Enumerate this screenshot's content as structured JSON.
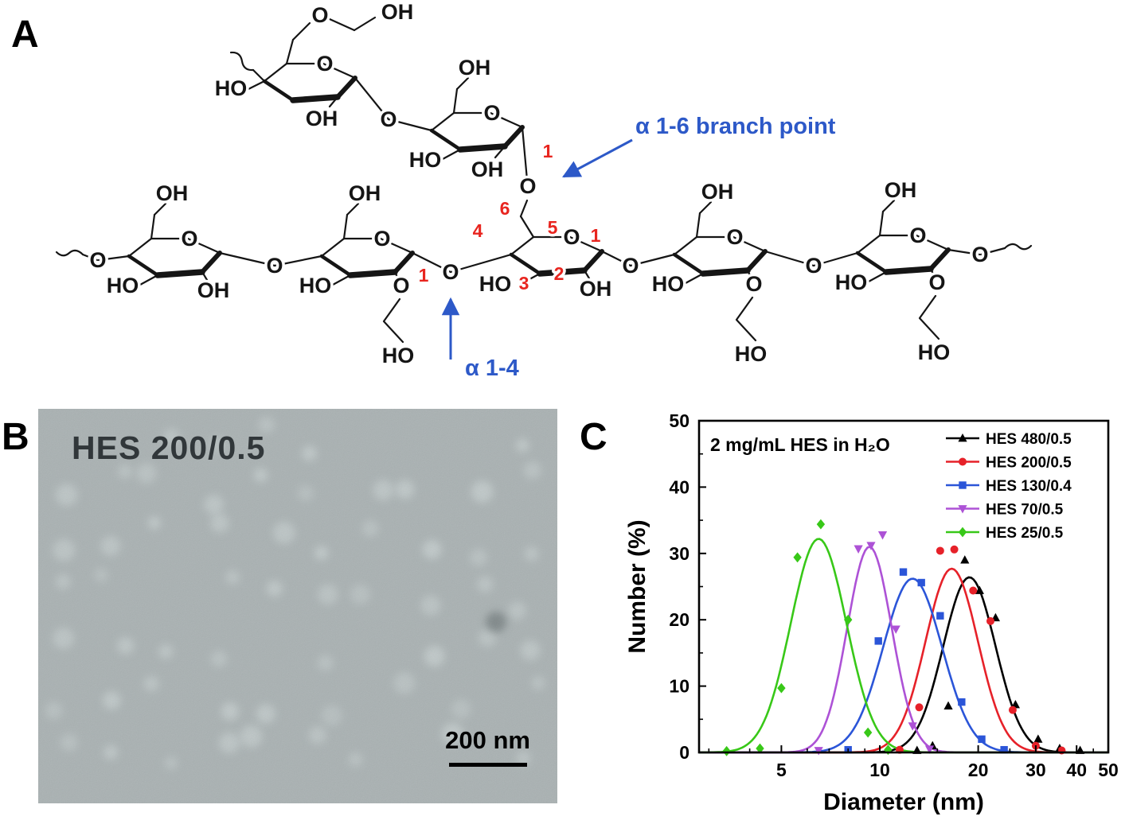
{
  "figure": {
    "panel_a_label": "A",
    "panel_b_label": "B",
    "panel_c_label": "C"
  },
  "chem": {
    "o": "O",
    "oh": "OH",
    "ho": "HO",
    "numbers": {
      "n1": "1",
      "n2": "2",
      "n3": "3",
      "n4": "4",
      "n5": "5",
      "n6": "6"
    },
    "branch_annotation": "α  1-6 branch point",
    "linkage_annotation": "α  1-4",
    "annotation_color": "#2d59c8",
    "number_color": "#e8251f",
    "bond_color": "#151515"
  },
  "tem": {
    "title": "HES 200/0.5",
    "scalebar_label": "200 nm"
  },
  "chart_data": {
    "type": "line",
    "annotation": "2 mg/mL HES in H₂O",
    "xlabel": "Diameter (nm)",
    "ylabel": "Number (%)",
    "xscale": "log",
    "xlim": [
      2.8,
      50
    ],
    "ylim": [
      0,
      50
    ],
    "xticks_major": [
      5,
      10,
      20,
      30,
      40,
      50
    ],
    "xticks_minor": [
      3,
      4,
      6,
      7,
      8,
      9,
      15,
      25,
      35,
      45
    ],
    "yticks_major": [
      0,
      10,
      20,
      30,
      40,
      50
    ],
    "yticks_minor": [
      5,
      15,
      25,
      35,
      45
    ],
    "grid": false,
    "legend_position": "top-right",
    "series": [
      {
        "name": "HES 480/0.5",
        "color": "#000000",
        "marker": "triangle-up",
        "curve": {
          "amplitude": 26.4,
          "center": 18.8,
          "sigma_log10": 0.08
        },
        "points": [
          [
            13,
            0.3
          ],
          [
            14.5,
            1.0
          ],
          [
            16.2,
            7.0
          ],
          [
            18.2,
            29.0
          ],
          [
            20.2,
            24.4
          ],
          [
            22.6,
            20.3
          ],
          [
            26,
            7.2
          ],
          [
            30.5,
            2.0
          ],
          [
            35.5,
            0.6
          ],
          [
            41,
            0.3
          ]
        ]
      },
      {
        "name": "HES 200/0.5",
        "color": "#e62129",
        "marker": "circle",
        "curve": {
          "amplitude": 27.7,
          "center": 16.6,
          "sigma_log10": 0.08
        },
        "points": [
          [
            11.5,
            0.4
          ],
          [
            13.2,
            6.8
          ],
          [
            15.3,
            30.4
          ],
          [
            16.9,
            30.6
          ],
          [
            19.3,
            24.4
          ],
          [
            21.8,
            19.8
          ],
          [
            25.5,
            6.4
          ],
          [
            30,
            1.0
          ],
          [
            36,
            0.3
          ]
        ]
      },
      {
        "name": "HES 130/0.4",
        "color": "#2b55d8",
        "marker": "square",
        "curve": {
          "amplitude": 26.2,
          "center": 12.6,
          "sigma_log10": 0.09
        },
        "points": [
          [
            8,
            0.4
          ],
          [
            9.9,
            16.8
          ],
          [
            11.8,
            27.2
          ],
          [
            13.4,
            25.6
          ],
          [
            15.3,
            20.6
          ],
          [
            17.8,
            7.6
          ],
          [
            20.5,
            2.0
          ],
          [
            24,
            0.4
          ]
        ]
      },
      {
        "name": "HES 70/0.5",
        "color": "#ad52d6",
        "marker": "triangle-down",
        "curve": {
          "amplitude": 31.0,
          "center": 9.3,
          "sigma_log10": 0.068
        },
        "points": [
          [
            6.5,
            0.3
          ],
          [
            8.6,
            30.7
          ],
          [
            9.4,
            31.2
          ],
          [
            10.2,
            32.8
          ],
          [
            11.2,
            18.6
          ],
          [
            12.6,
            4.0
          ],
          [
            14.2,
            0.5
          ]
        ]
      },
      {
        "name": "HES 25/0.5",
        "color": "#38c818",
        "marker": "diamond",
        "curve": {
          "amplitude": 32.2,
          "center": 6.5,
          "sigma_log10": 0.085
        },
        "points": [
          [
            3.4,
            0.2
          ],
          [
            4.3,
            0.6
          ],
          [
            5.0,
            9.7
          ],
          [
            5.6,
            29.4
          ],
          [
            6.6,
            34.4
          ],
          [
            8.0,
            20.0
          ],
          [
            9.2,
            3.0
          ],
          [
            10.6,
            0.4
          ]
        ]
      }
    ]
  }
}
